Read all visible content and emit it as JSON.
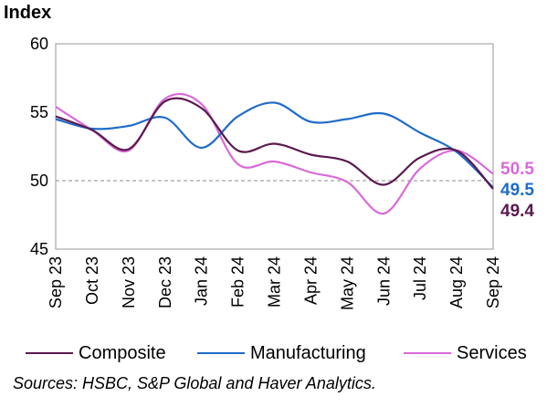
{
  "chart_data": {
    "type": "line",
    "ylabel": "Index",
    "xlabel": "",
    "title": "",
    "ylim": [
      45,
      60
    ],
    "yticks": [
      45,
      50,
      55,
      60
    ],
    "reference_line": 50,
    "categories": [
      "Sep 23",
      "Oct 23",
      "Nov 23",
      "Dec 23",
      "Jan 24",
      "Feb 24",
      "Mar 24",
      "Apr 24",
      "May 24",
      "Jun 24",
      "Jul 24",
      "Aug 24",
      "Sep 24"
    ],
    "series": [
      {
        "name": "Composite",
        "color": "#5b1a4f",
        "values": [
          54.7,
          53.7,
          52.3,
          55.8,
          55.3,
          52.2,
          52.7,
          51.9,
          51.4,
          49.7,
          51.7,
          52.2,
          49.4
        ],
        "end_label": "49.4"
      },
      {
        "name": "Manufacturing",
        "color": "#1f6cc9",
        "values": [
          54.5,
          53.8,
          54.0,
          54.6,
          52.4,
          54.7,
          55.7,
          54.3,
          54.5,
          54.9,
          53.5,
          52.1,
          49.5
        ],
        "end_label": "49.5"
      },
      {
        "name": "Services",
        "color": "#d96ad9",
        "values": [
          55.4,
          53.7,
          52.2,
          56.0,
          55.6,
          51.2,
          51.4,
          50.6,
          49.9,
          47.6,
          50.9,
          52.2,
          50.5
        ],
        "end_label": "50.5"
      }
    ],
    "legend_position": "bottom",
    "grid": false
  },
  "source_text": "Sources: HSBC, S&P Global and Haver Analytics."
}
